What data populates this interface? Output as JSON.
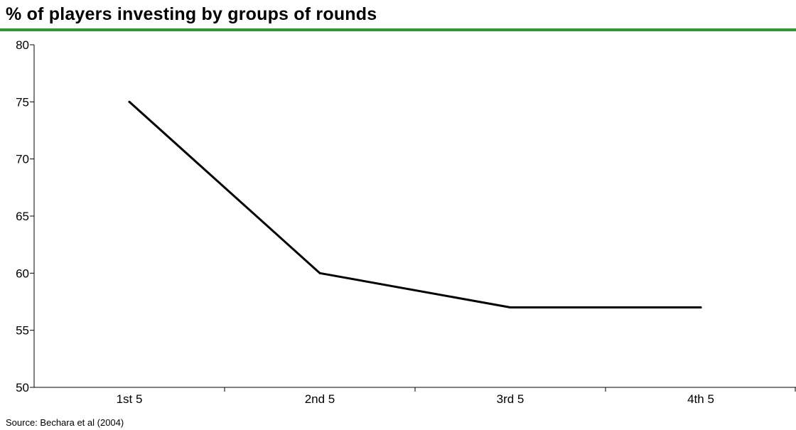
{
  "colors": {
    "rule": "#2e9a2e",
    "line": "#000000",
    "axis": "#000000"
  },
  "chart_data": {
    "type": "line",
    "title": "% of players investing by groups of rounds",
    "xlabel": "",
    "ylabel": "",
    "categories": [
      "1st 5",
      "2nd 5",
      "3rd 5",
      "4th 5"
    ],
    "series": [
      {
        "values": [
          75,
          60,
          57,
          57
        ]
      }
    ],
    "ylim": [
      50,
      80
    ],
    "yticks": [
      50,
      55,
      60,
      65,
      70,
      75,
      80
    ],
    "grid": false,
    "legend": "none",
    "source": "Source: Bechara et al (2004)"
  }
}
